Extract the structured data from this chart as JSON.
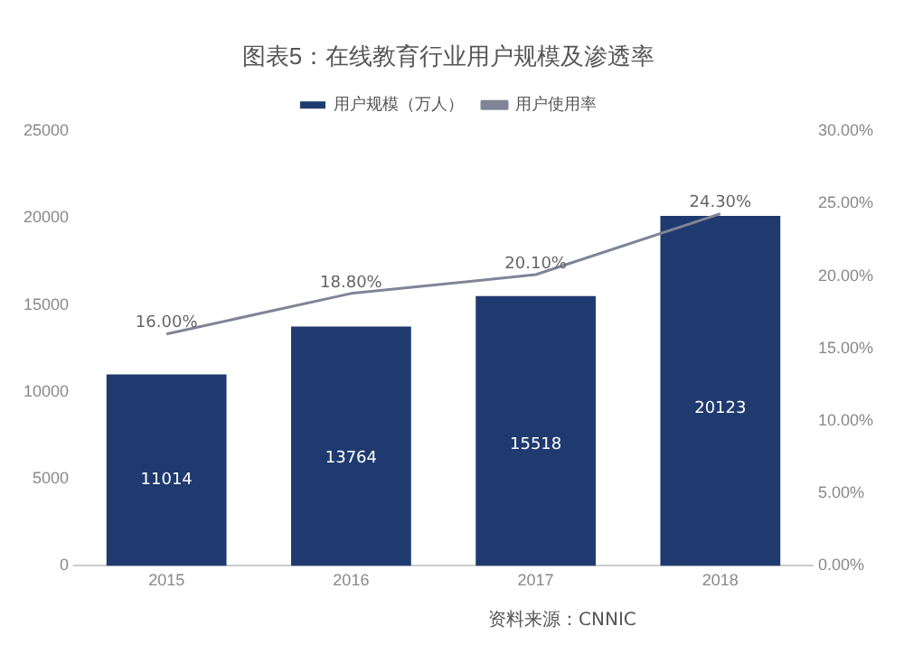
{
  "chart_data": {
    "type": "bar",
    "title": "图表5：在线教育行业用户规模及渗透率",
    "categories": [
      "2015",
      "2016",
      "2017",
      "2018"
    ],
    "series": [
      {
        "name": "用户规模（万人）",
        "color": "#1f3a6e",
        "values": [
          11014,
          13764,
          15518,
          20123
        ],
        "value_labels": [
          "11014",
          "13764",
          "15518",
          "20123"
        ]
      },
      {
        "name": "用户使用率",
        "type": "line",
        "axis": "y2",
        "color": "#7f8496",
        "values": [
          16.0,
          18.8,
          20.1,
          24.3
        ],
        "value_labels": [
          "16.00%",
          "18.80%",
          "20.10%",
          "24.30%"
        ]
      }
    ],
    "ylim": [
      0,
      25000
    ],
    "yticks": [
      0,
      5000,
      10000,
      15000,
      20000,
      25000
    ],
    "y2lim": [
      0,
      30
    ],
    "y2ticks": [
      {
        "value": 0,
        "label": "0.00%"
      },
      {
        "value": 5,
        "label": "5.00%"
      },
      {
        "value": 10,
        "label": "10.00%"
      },
      {
        "value": 15,
        "label": "15.00%"
      },
      {
        "value": 20,
        "label": "20.00%"
      },
      {
        "value": 25,
        "label": "25.00%"
      },
      {
        "value": 30,
        "label": "30.00%"
      }
    ],
    "grid": false,
    "legend": "top",
    "marker": "none",
    "annotations": [
      "资料来源：CNNIC"
    ]
  }
}
